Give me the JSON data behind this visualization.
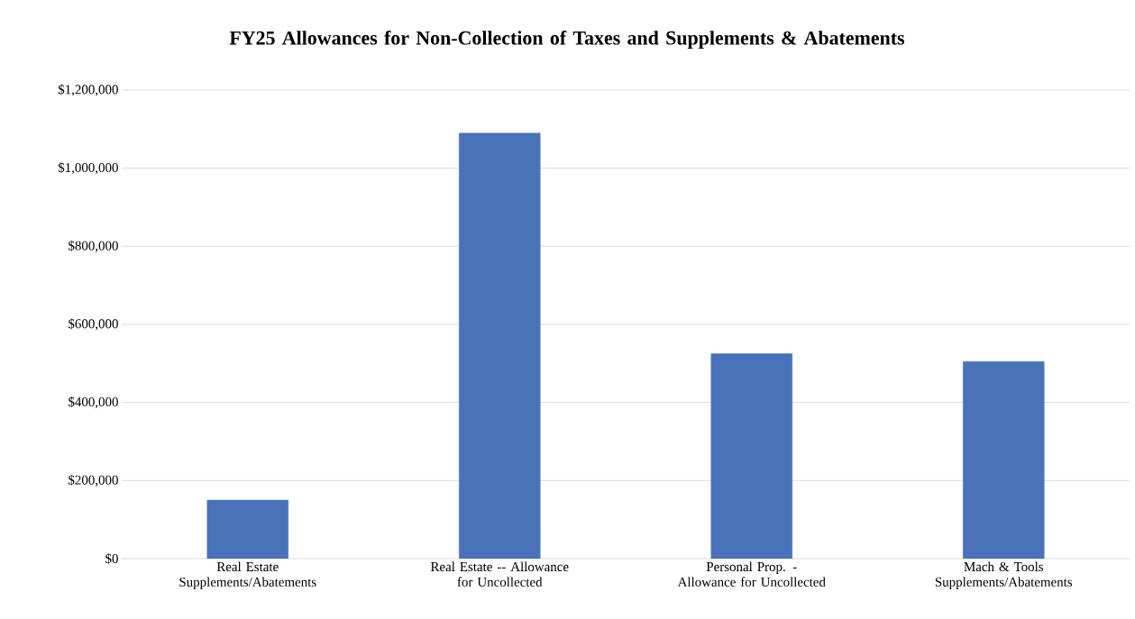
{
  "chart_data": {
    "type": "bar",
    "title": "FY25 Allowances for Non-Collection of Taxes and Supplements & Abatements",
    "categories": [
      "Real Estate Supplements/Abatements",
      "Real Estate -- Allowance for Uncollected",
      "Personal Prop. - Allowance for Uncollected",
      "Mach & Tools Supplements/Abatements"
    ],
    "values": [
      150000,
      1090000,
      525000,
      505000
    ],
    "color": "#4a72b8",
    "ylim": [
      0,
      1200000
    ],
    "yticks": [
      {
        "value": 0,
        "label": "$0"
      },
      {
        "value": 200000,
        "label": "$200,000"
      },
      {
        "value": 400000,
        "label": "$400,000"
      },
      {
        "value": 600000,
        "label": "$600,000"
      },
      {
        "value": 800000,
        "label": "$800,000"
      },
      {
        "value": 1000000,
        "label": "$1,000,000"
      },
      {
        "value": 1200000,
        "label": "$1,200,000"
      }
    ],
    "grid": "y"
  }
}
